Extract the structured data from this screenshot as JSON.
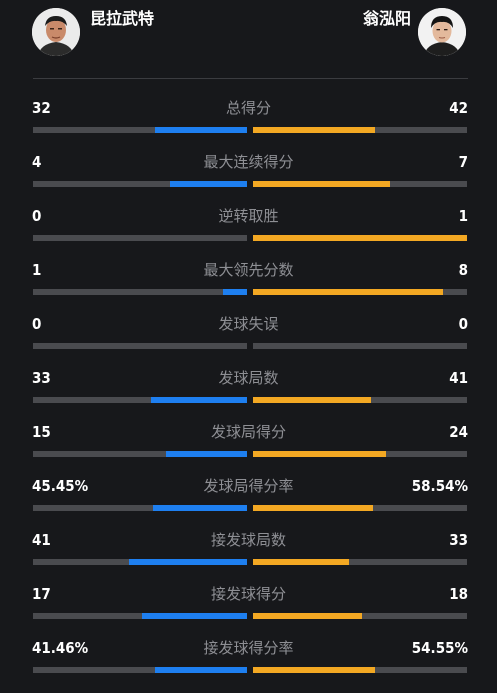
{
  "players": {
    "left": {
      "name": "昆拉武特",
      "color": "#1e7ff0"
    },
    "right": {
      "name": "翁泓阳",
      "color": "#f3a823"
    }
  },
  "stats": [
    {
      "label": "总得分",
      "left": "32",
      "right": "42",
      "left_fill": 0.43,
      "right_fill": 0.57
    },
    {
      "label": "最大连续得分",
      "left": "4",
      "right": "7",
      "left_fill": 0.36,
      "right_fill": 0.64
    },
    {
      "label": "逆转取胜",
      "left": "0",
      "right": "1",
      "left_fill": 0.0,
      "right_fill": 1.0
    },
    {
      "label": "最大领先分数",
      "left": "1",
      "right": "8",
      "left_fill": 0.11,
      "right_fill": 0.89
    },
    {
      "label": "发球失误",
      "left": "0",
      "right": "0",
      "left_fill": 0.0,
      "right_fill": 0.0
    },
    {
      "label": "发球局数",
      "left": "33",
      "right": "41",
      "left_fill": 0.45,
      "right_fill": 0.55
    },
    {
      "label": "发球局得分",
      "left": "15",
      "right": "24",
      "left_fill": 0.38,
      "right_fill": 0.62
    },
    {
      "label": "发球局得分率",
      "left": "45.45%",
      "right": "58.54%",
      "left_fill": 0.44,
      "right_fill": 0.56
    },
    {
      "label": "接发球局数",
      "left": "41",
      "right": "33",
      "left_fill": 0.55,
      "right_fill": 0.45
    },
    {
      "label": "接发球得分",
      "left": "17",
      "right": "18",
      "left_fill": 0.49,
      "right_fill": 0.51
    },
    {
      "label": "接发球得分率",
      "left": "41.46%",
      "right": "54.55%",
      "left_fill": 0.43,
      "right_fill": 0.57
    }
  ]
}
